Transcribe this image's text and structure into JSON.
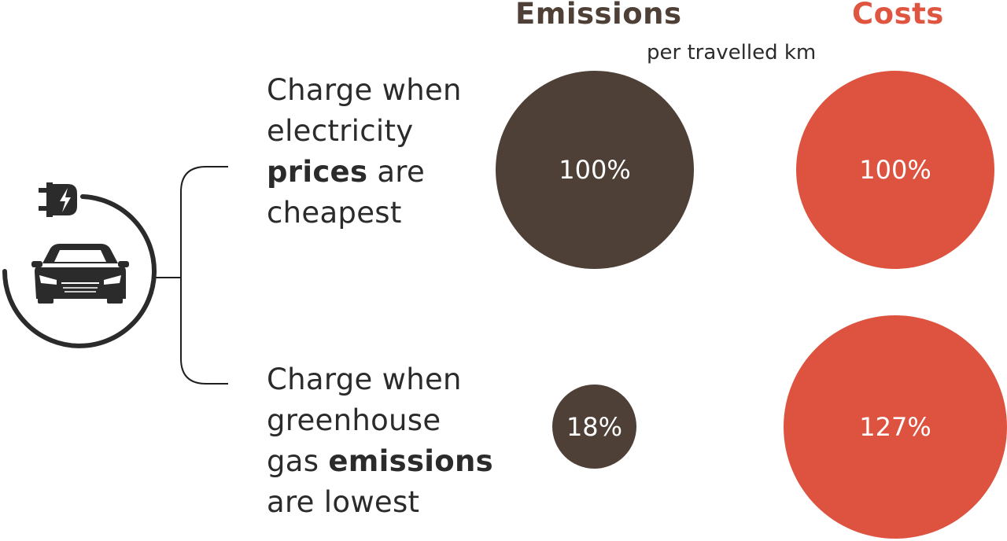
{
  "headers": {
    "emissions": "Emissions",
    "costs": "Costs",
    "unit": "per travelled km"
  },
  "scenarios": [
    {
      "lines": [
        {
          "pre": "Charge when",
          "bold": "",
          "post": ""
        },
        {
          "pre": "electricity",
          "bold": "",
          "post": ""
        },
        {
          "pre": "",
          "bold": "prices",
          "post": " are"
        },
        {
          "pre": "cheapest",
          "bold": "",
          "post": ""
        }
      ],
      "emissions": "100%",
      "costs": "100%"
    },
    {
      "lines": [
        {
          "pre": "Charge when",
          "bold": "",
          "post": ""
        },
        {
          "pre": "greenhouse",
          "bold": "",
          "post": ""
        },
        {
          "pre": "gas ",
          "bold": "emissions",
          "post": ""
        },
        {
          "pre": "are lowest",
          "bold": "",
          "post": ""
        }
      ],
      "emissions": "18%",
      "costs": "127%"
    }
  ],
  "icons": {
    "car": "car-icon",
    "plug": "charging-plug-icon"
  },
  "colors": {
    "emissions": "#4f4037",
    "costs": "#dd533f",
    "text": "#2b2b2b"
  }
}
